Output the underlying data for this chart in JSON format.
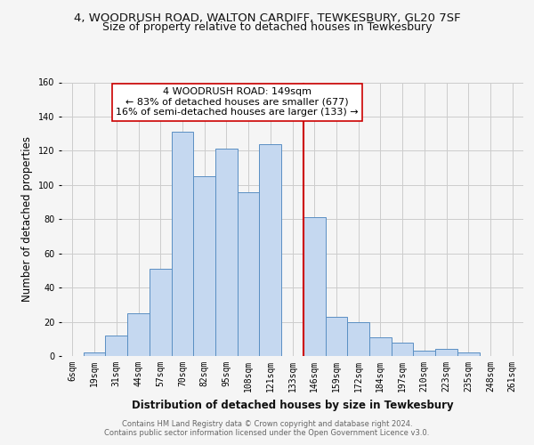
{
  "title_line1": "4, WOODRUSH ROAD, WALTON CARDIFF, TEWKESBURY, GL20 7SF",
  "title_line2": "Size of property relative to detached houses in Tewkesbury",
  "xlabel": "Distribution of detached houses by size in Tewkesbury",
  "ylabel": "Number of detached properties",
  "bar_labels": [
    "6sqm",
    "19sqm",
    "31sqm",
    "44sqm",
    "57sqm",
    "70sqm",
    "82sqm",
    "95sqm",
    "108sqm",
    "121sqm",
    "133sqm",
    "146sqm",
    "159sqm",
    "172sqm",
    "184sqm",
    "197sqm",
    "210sqm",
    "223sqm",
    "235sqm",
    "248sqm",
    "261sqm"
  ],
  "bar_values": [
    0,
    2,
    12,
    25,
    51,
    131,
    105,
    121,
    96,
    124,
    0,
    81,
    23,
    20,
    11,
    8,
    3,
    4,
    2,
    0,
    0
  ],
  "bar_color": "#c5d8f0",
  "bar_edge_color": "#5a8fc3",
  "vline_x": 11,
  "vline_color": "#cc0000",
  "annotation_title": "4 WOODRUSH ROAD: 149sqm",
  "annotation_line1": "← 83% of detached houses are smaller (677)",
  "annotation_line2": "16% of semi-detached houses are larger (133) →",
  "annotation_box_color": "#ffffff",
  "annotation_box_edge_color": "#cc0000",
  "ylim": [
    0,
    160
  ],
  "yticks": [
    0,
    20,
    40,
    60,
    80,
    100,
    120,
    140,
    160
  ],
  "footer_line1": "Contains HM Land Registry data © Crown copyright and database right 2024.",
  "footer_line2": "Contains public sector information licensed under the Open Government Licence v3.0.",
  "bg_color": "#f5f5f5",
  "grid_color": "#cccccc",
  "title_fontsize": 9.5,
  "subtitle_fontsize": 9,
  "tick_fontsize": 7,
  "label_fontsize": 8.5,
  "footer_fontsize": 6,
  "annot_fontsize": 8
}
